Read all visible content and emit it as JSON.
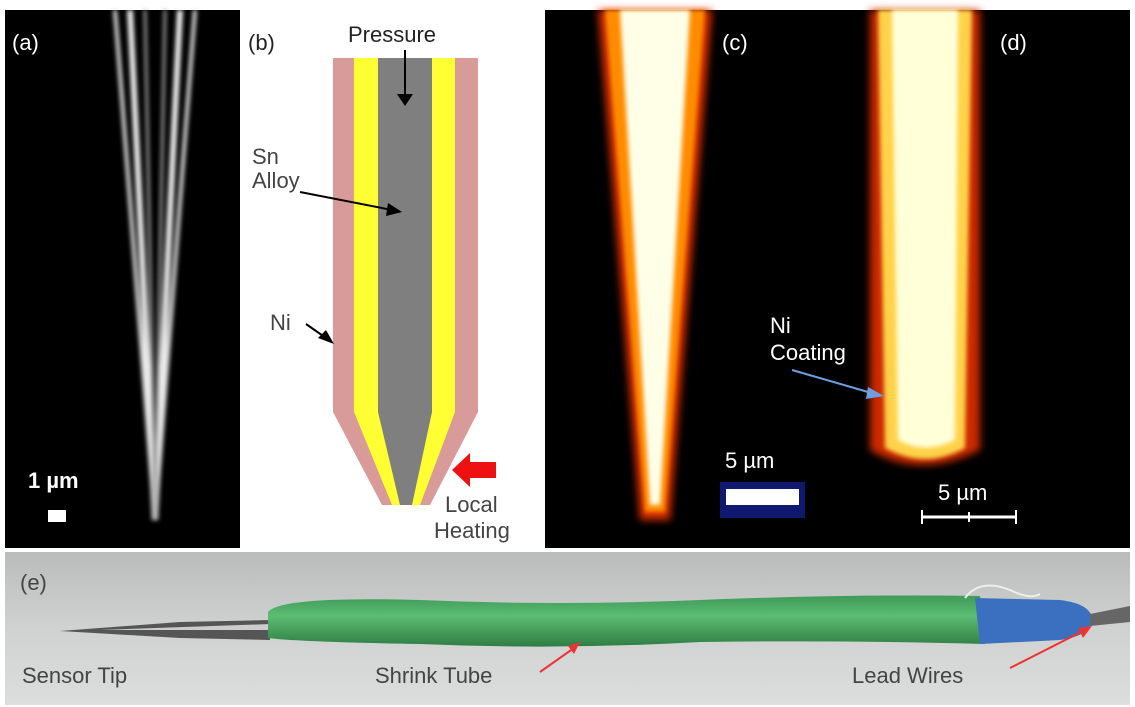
{
  "panels": {
    "a": {
      "label": "(a)",
      "scale_bar": "1 µm"
    },
    "b": {
      "label": "(b)",
      "pressure": "Pressure",
      "sn_alloy": [
        "Sn",
        "Alloy"
      ],
      "ni": "Ni",
      "local_heating": [
        "Local",
        "Heating"
      ]
    },
    "c": {
      "label": "(c)",
      "scale_bar": "5 µm"
    },
    "d": {
      "label": "(d)",
      "ni_coating": [
        "Ni",
        "Coating"
      ],
      "scale_bar": "5 µm"
    },
    "e": {
      "label": "(e)",
      "sensor_tip": "Sensor Tip",
      "shrink_tube": "Shrink Tube",
      "lead_wires": "Lead Wires"
    }
  }
}
